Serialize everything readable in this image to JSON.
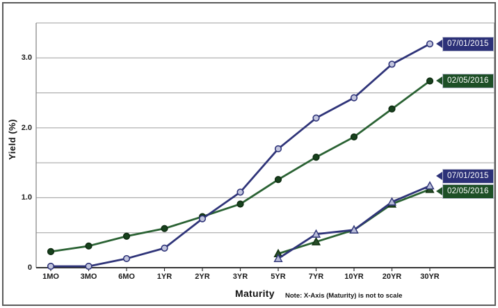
{
  "chart_data": {
    "type": "line",
    "xlabel": "Maturity",
    "ylabel": "Yield (%)",
    "note": "Note: X-Axis (Maturity) is not to scale",
    "categories": [
      "1MO",
      "3MO",
      "6MO",
      "1YR",
      "2YR",
      "3YR",
      "5YR",
      "7YR",
      "10YR",
      "20YR",
      "30YR"
    ],
    "y_ticks": [
      {
        "value": 0,
        "label": "0"
      },
      {
        "value": 1.0,
        "label": "1.0"
      },
      {
        "value": 2.0,
        "label": "2.0"
      },
      {
        "value": 3.0,
        "label": "3.0"
      }
    ],
    "ylim": [
      0,
      3.5
    ],
    "grid_step": 0.5,
    "grid_color": "#9d9d9d",
    "plot_border_color": "#8a8a8a",
    "axis_color": "#333333",
    "legend_position": "right-callouts",
    "series": [
      {
        "name": "02/05/2016",
        "group": "upper",
        "marker": "circle",
        "line_color": "#2a6233",
        "marker_fill": "#17421d",
        "marker_stroke": "#0f2c12",
        "label_bg": "#1d4f26",
        "values": [
          0.23,
          0.31,
          0.45,
          0.56,
          0.73,
          0.91,
          1.26,
          1.58,
          1.87,
          2.27,
          2.67
        ]
      },
      {
        "name": "02/05/2016",
        "group": "lower",
        "marker": "triangle",
        "line_color": "#2a6233",
        "marker_fill": "#274d28",
        "marker_stroke": "#10300f",
        "label_bg": "#1d4f26",
        "values": [
          null,
          null,
          null,
          null,
          null,
          null,
          0.2,
          0.37,
          0.54,
          0.91,
          1.12
        ]
      },
      {
        "name": "07/01/2015",
        "group": "upper",
        "marker": "circle",
        "line_color": "#2f3479",
        "marker_fill": "#c3c6de",
        "marker_stroke": "#2f3479",
        "label_bg": "#2c3178",
        "values": [
          0.02,
          0.02,
          0.13,
          0.28,
          0.7,
          1.08,
          1.7,
          2.14,
          2.43,
          2.91,
          3.2
        ]
      },
      {
        "name": "07/01/2015",
        "group": "lower",
        "marker": "triangle",
        "line_color": "#2f3479",
        "marker_fill": "#b9bdd9",
        "marker_stroke": "#2f3479",
        "label_bg": "#2c3178",
        "values": [
          null,
          null,
          null,
          null,
          null,
          null,
          0.13,
          0.48,
          0.54,
          0.94,
          1.17
        ]
      }
    ],
    "callouts": [
      {
        "series_index": 2,
        "text": "07/01/2015"
      },
      {
        "series_index": 0,
        "text": "02/05/2016"
      },
      {
        "series_index": 3,
        "text": "07/01/2015"
      },
      {
        "series_index": 1,
        "text": "02/05/2016"
      }
    ]
  }
}
